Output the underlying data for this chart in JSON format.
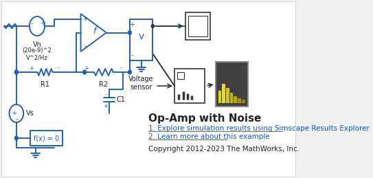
{
  "bg_color": "#f5f5f5",
  "circuit_color": "#2060c0",
  "text_color_dark": "#222222",
  "title": "Op-Amp with Noise",
  "line1": "1. Explore simulation results using Simscape Results Explorer",
  "line2": "2. Learn more about this example",
  "copyright": "Copyright 2012-2023 The MathWorks, Inc.",
  "Vn_label": "Vn",
  "Vn_sublabel": "(20e-9)^2\nV^2/Hz",
  "Vs_label": "Vs",
  "R1_label": "R1",
  "R2_label": "R2",
  "C1_label": "C1",
  "voltage_sensor_label": "Voltage\nsensor",
  "solver_label": "f(x) = 0"
}
